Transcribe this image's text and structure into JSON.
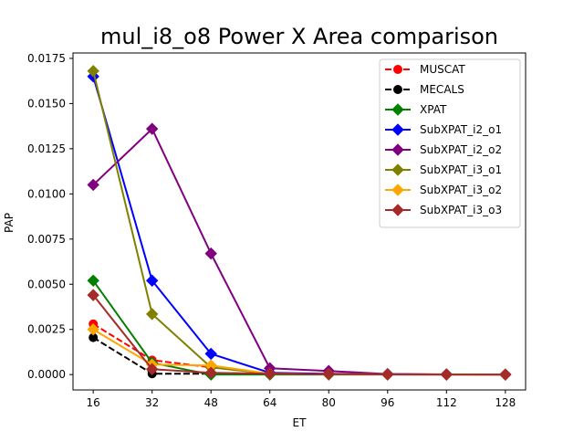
{
  "chart_data": {
    "type": "line",
    "title": "mul_i8_o8 Power X Area comparison",
    "xlabel": "ET",
    "ylabel": "PAP",
    "x_ticks": [
      16,
      32,
      48,
      64,
      80,
      96,
      112,
      128
    ],
    "y_ticks": [
      0.0,
      0.0025,
      0.005,
      0.0075,
      0.01,
      0.0125,
      0.015,
      0.0175
    ],
    "y_tick_labels": [
      "0.0000",
      "0.0025",
      "0.0050",
      "0.0075",
      "0.0100",
      "0.0125",
      "0.0150",
      "0.0175"
    ],
    "xlim": [
      10.5,
      133.5
    ],
    "ylim": [
      -0.00085,
      0.0178
    ],
    "grid": false,
    "legend_position": "top-right",
    "series": [
      {
        "name": "MUSCAT",
        "color": "#ff0000",
        "marker": "circle",
        "dashed": true,
        "x": [
          16,
          32,
          48
        ],
        "y": [
          0.0028,
          0.0008,
          0.0004
        ]
      },
      {
        "name": "MECALS",
        "color": "#000000",
        "marker": "circle",
        "dashed": true,
        "x": [
          16,
          32,
          48
        ],
        "y": [
          0.00205,
          5e-05,
          5e-05
        ]
      },
      {
        "name": "XPAT",
        "color": "#008000",
        "marker": "diamond",
        "dashed": false,
        "x": [
          16,
          32,
          48,
          64,
          80,
          96,
          112,
          128
        ],
        "y": [
          0.0052,
          0.00065,
          0.0,
          0.0,
          0.0,
          0.0,
          0.0,
          0.0
        ]
      },
      {
        "name": "SubXPAT_i2_o1",
        "color": "#0000ff",
        "marker": "diamond",
        "dashed": false,
        "x": [
          16,
          32,
          48,
          64,
          80,
          96,
          112,
          128
        ],
        "y": [
          0.0165,
          0.0052,
          0.00115,
          0.0001,
          5e-05,
          3e-05,
          1e-05,
          0.0
        ]
      },
      {
        "name": "SubXPAT_i2_o2",
        "color": "#800080",
        "marker": "diamond",
        "dashed": false,
        "x": [
          16,
          32,
          48,
          64,
          80,
          96,
          112,
          128
        ],
        "y": [
          0.0105,
          0.0136,
          0.0067,
          0.00035,
          0.0002,
          3e-05,
          1e-05,
          0.0
        ]
      },
      {
        "name": "SubXPAT_i3_o1",
        "color": "#808000",
        "marker": "diamond",
        "dashed": false,
        "x": [
          16,
          32,
          48,
          64,
          80,
          96,
          112,
          128
        ],
        "y": [
          0.0168,
          0.00335,
          0.0004,
          5e-05,
          3e-05,
          1e-05,
          0.0,
          0.0
        ]
      },
      {
        "name": "SubXPAT_i3_o2",
        "color": "#ffa500",
        "marker": "diamond",
        "dashed": false,
        "x": [
          16,
          32,
          48,
          64,
          80,
          96,
          112,
          128
        ],
        "y": [
          0.0025,
          0.00055,
          0.0005,
          5e-05,
          3e-05,
          1e-05,
          0.0,
          0.0
        ]
      },
      {
        "name": "SubXPAT_i3_o3",
        "color": "#a52a2a",
        "marker": "diamond",
        "dashed": false,
        "x": [
          16,
          32,
          48,
          64,
          80,
          96,
          112,
          128
        ],
        "y": [
          0.0044,
          0.0003,
          0.0001,
          5e-05,
          3e-05,
          1e-05,
          0.0,
          0.0
        ]
      }
    ]
  }
}
